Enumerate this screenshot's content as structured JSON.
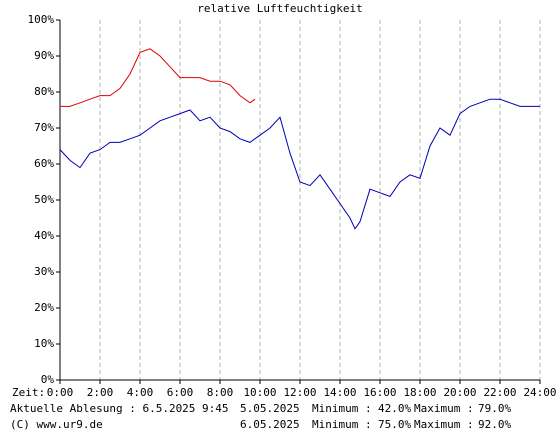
{
  "chart_data": {
    "type": "line",
    "title": "relative Luftfeuchtigkeit",
    "x_axis_label": "Zeit:",
    "reading_label": "Aktuelle Ablesung : 6.5.2025 9:45",
    "copyright": "(C) www.ur9.de",
    "min_label": "Minimum :",
    "max_label": "Maximum :",
    "xlim": [
      0,
      24
    ],
    "xticks": [
      {
        "value": 0,
        "label": "0:00"
      },
      {
        "value": 2,
        "label": "2:00"
      },
      {
        "value": 4,
        "label": "4:00"
      },
      {
        "value": 6,
        "label": "6:00"
      },
      {
        "value": 8,
        "label": "8:00"
      },
      {
        "value": 10,
        "label": "10:00"
      },
      {
        "value": 12,
        "label": "12:00"
      },
      {
        "value": 14,
        "label": "14:00"
      },
      {
        "value": 16,
        "label": "16:00"
      },
      {
        "value": 18,
        "label": "18:00"
      },
      {
        "value": 20,
        "label": "20:00"
      },
      {
        "value": 22,
        "label": "22:00"
      },
      {
        "value": 24,
        "label": "24:00"
      }
    ],
    "ylim": [
      0,
      100
    ],
    "yticks": [
      {
        "value": 0,
        "label": "0%"
      },
      {
        "value": 10,
        "label": "10%"
      },
      {
        "value": 20,
        "label": "20%"
      },
      {
        "value": 30,
        "label": "30%"
      },
      {
        "value": 40,
        "label": "40%"
      },
      {
        "value": 50,
        "label": "50%"
      },
      {
        "value": 60,
        "label": "60%"
      },
      {
        "value": 70,
        "label": "70%"
      },
      {
        "value": 80,
        "label": "80%"
      },
      {
        "value": 90,
        "label": "90%"
      },
      {
        "value": 100,
        "label": "100%"
      }
    ],
    "grid": "x",
    "series": [
      {
        "name": "5.05.2025",
        "color": "#0000b0",
        "x": [
          0,
          0.5,
          1,
          1.5,
          2,
          2.5,
          3,
          3.5,
          4,
          4.5,
          5,
          5.5,
          6,
          6.5,
          7,
          7.5,
          8,
          8.5,
          9,
          9.5,
          10,
          10.5,
          11,
          11.5,
          12,
          12.5,
          13,
          13.5,
          14,
          14.5,
          14.75,
          15,
          15.5,
          16,
          16.5,
          17,
          17.5,
          18,
          18.5,
          19,
          19.5,
          20,
          20.5,
          21,
          21.5,
          22,
          22.5,
          23,
          23.5,
          24
        ],
        "values": [
          64,
          61,
          59,
          63,
          64,
          66,
          66,
          67,
          68,
          70,
          72,
          73,
          74,
          75,
          72,
          73,
          70,
          69,
          67,
          66,
          68,
          70,
          73,
          63,
          55,
          54,
          57,
          53,
          49,
          45,
          42,
          44,
          53,
          52,
          51,
          55,
          57,
          56,
          65,
          70,
          68,
          74,
          76,
          77,
          78,
          78,
          77,
          76,
          76,
          76
        ],
        "minimum": {
          "value": 42,
          "label": "42.0%"
        },
        "maximum": {
          "value": 79,
          "label": "79.0%"
        }
      },
      {
        "name": "6.05.2025",
        "color": "#e00000",
        "x": [
          0,
          0.5,
          1,
          1.5,
          2,
          2.5,
          3,
          3.5,
          4,
          4.5,
          5,
          5.5,
          6,
          6.5,
          7,
          7.5,
          8,
          8.5,
          9,
          9.5,
          9.75
        ],
        "values": [
          76,
          76,
          77,
          78,
          79,
          79,
          81,
          85,
          91,
          92,
          90,
          87,
          84,
          84,
          84,
          83,
          83,
          82,
          79,
          77,
          78
        ],
        "minimum": {
          "value": 75,
          "label": "75.0%"
        },
        "maximum": {
          "value": 92,
          "label": "92.0%"
        }
      }
    ]
  }
}
